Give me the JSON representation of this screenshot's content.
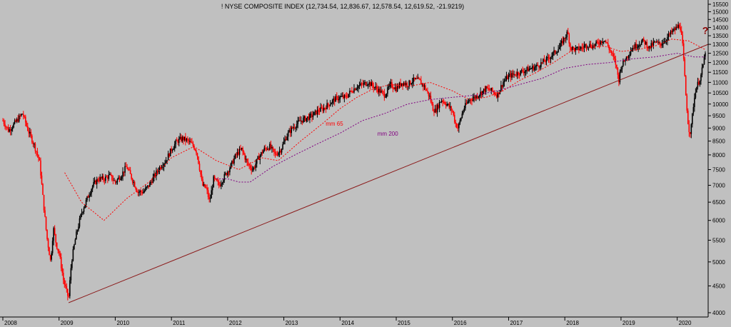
{
  "chart_data": {
    "type": "candlestick",
    "title": "! NYSE COMPOSITE INDEX (12,734.54, 12,836.67, 12,578.54, 12,619.52, -21.9219)",
    "xlabel": "",
    "ylabel": "",
    "x_range": [
      2008.0,
      2020.5
    ],
    "ylim": [
      4000,
      15500
    ],
    "y_scale": "log",
    "y_ticks": [
      4000,
      4500,
      5000,
      5500,
      6000,
      6500,
      7000,
      7500,
      8000,
      8500,
      9000,
      9500,
      10000,
      10500,
      11000,
      11500,
      12000,
      12500,
      13000,
      13500,
      14000,
      14500,
      15000,
      15500
    ],
    "x_ticks": [
      "2008",
      "2009",
      "2010",
      "2011",
      "2012",
      "2013",
      "2014",
      "2015",
      "2016",
      "2017",
      "2018",
      "2019",
      "2020"
    ],
    "grid": false,
    "price_path": [
      [
        2008.0,
        9300
      ],
      [
        2008.1,
        8900
      ],
      [
        2008.25,
        9300
      ],
      [
        2008.35,
        9600
      ],
      [
        2008.45,
        8900
      ],
      [
        2008.55,
        8400
      ],
      [
        2008.65,
        7800
      ],
      [
        2008.72,
        6500
      ],
      [
        2008.78,
        5600
      ],
      [
        2008.85,
        5000
      ],
      [
        2008.9,
        5800
      ],
      [
        2008.95,
        5400
      ],
      [
        2009.0,
        5200
      ],
      [
        2009.08,
        4600
      ],
      [
        2009.17,
        4250
      ],
      [
        2009.22,
        5000
      ],
      [
        2009.3,
        5600
      ],
      [
        2009.4,
        6200
      ],
      [
        2009.5,
        6600
      ],
      [
        2009.6,
        7000
      ],
      [
        2009.7,
        7200
      ],
      [
        2009.8,
        7200
      ],
      [
        2009.9,
        7300
      ],
      [
        2010.0,
        7100
      ],
      [
        2010.1,
        7300
      ],
      [
        2010.2,
        7600
      ],
      [
        2010.3,
        7200
      ],
      [
        2010.4,
        6800
      ],
      [
        2010.5,
        6800
      ],
      [
        2010.6,
        7000
      ],
      [
        2010.7,
        7300
      ],
      [
        2010.8,
        7600
      ],
      [
        2010.9,
        7800
      ],
      [
        2011.0,
        8200
      ],
      [
        2011.1,
        8500
      ],
      [
        2011.2,
        8600
      ],
      [
        2011.3,
        8500
      ],
      [
        2011.4,
        8300
      ],
      [
        2011.45,
        8100
      ],
      [
        2011.55,
        7000
      ],
      [
        2011.62,
        6900
      ],
      [
        2011.68,
        6500
      ],
      [
        2011.75,
        7200
      ],
      [
        2011.85,
        7000
      ],
      [
        2011.95,
        7300
      ],
      [
        2012.05,
        7600
      ],
      [
        2012.15,
        8000
      ],
      [
        2012.25,
        8200
      ],
      [
        2012.35,
        7700
      ],
      [
        2012.45,
        7500
      ],
      [
        2012.55,
        7900
      ],
      [
        2012.65,
        8200
      ],
      [
        2012.75,
        8300
      ],
      [
        2012.85,
        8000
      ],
      [
        2012.95,
        8200
      ],
      [
        2013.05,
        8700
      ],
      [
        2013.15,
        9000
      ],
      [
        2013.3,
        9300
      ],
      [
        2013.4,
        9400
      ],
      [
        2013.5,
        9500
      ],
      [
        2013.6,
        9700
      ],
      [
        2013.7,
        9800
      ],
      [
        2013.8,
        10000
      ],
      [
        2013.9,
        10200
      ],
      [
        2014.0,
        10300
      ],
      [
        2014.1,
        10300
      ],
      [
        2014.2,
        10600
      ],
      [
        2014.3,
        10800
      ],
      [
        2014.4,
        10900
      ],
      [
        2014.5,
        11000
      ],
      [
        2014.6,
        10800
      ],
      [
        2014.7,
        10600
      ],
      [
        2014.8,
        10400
      ],
      [
        2014.9,
        10900
      ],
      [
        2015.0,
        10700
      ],
      [
        2015.1,
        11000
      ],
      [
        2015.2,
        10900
      ],
      [
        2015.3,
        11100
      ],
      [
        2015.4,
        11100
      ],
      [
        2015.5,
        10800
      ],
      [
        2015.6,
        10300
      ],
      [
        2015.65,
        9800
      ],
      [
        2015.7,
        9700
      ],
      [
        2015.8,
        10200
      ],
      [
        2015.9,
        10000
      ],
      [
        2016.0,
        9700
      ],
      [
        2016.05,
        9200
      ],
      [
        2016.1,
        9000
      ],
      [
        2016.2,
        9800
      ],
      [
        2016.3,
        10200
      ],
      [
        2016.4,
        10300
      ],
      [
        2016.5,
        10500
      ],
      [
        2016.6,
        10700
      ],
      [
        2016.7,
        10600
      ],
      [
        2016.8,
        10400
      ],
      [
        2016.9,
        11000
      ],
      [
        2017.0,
        11300
      ],
      [
        2017.1,
        11400
      ],
      [
        2017.2,
        11500
      ],
      [
        2017.3,
        11600
      ],
      [
        2017.4,
        11700
      ],
      [
        2017.5,
        11800
      ],
      [
        2017.6,
        12000
      ],
      [
        2017.7,
        12200
      ],
      [
        2017.8,
        12500
      ],
      [
        2017.9,
        12800
      ],
      [
        2018.0,
        13400
      ],
      [
        2018.05,
        13700
      ],
      [
        2018.1,
        12800
      ],
      [
        2018.2,
        12700
      ],
      [
        2018.3,
        12800
      ],
      [
        2018.4,
        13000
      ],
      [
        2018.5,
        12900
      ],
      [
        2018.6,
        13100
      ],
      [
        2018.7,
        13300
      ],
      [
        2018.8,
        12700
      ],
      [
        2018.9,
        12000
      ],
      [
        2018.96,
        11100
      ],
      [
        2019.0,
        11800
      ],
      [
        2019.1,
        12300
      ],
      [
        2019.2,
        12800
      ],
      [
        2019.3,
        13000
      ],
      [
        2019.4,
        13200
      ],
      [
        2019.5,
        12800
      ],
      [
        2019.6,
        13100
      ],
      [
        2019.7,
        13000
      ],
      [
        2019.8,
        13300
      ],
      [
        2019.9,
        13700
      ],
      [
        2020.0,
        14000
      ],
      [
        2020.05,
        14200
      ],
      [
        2020.1,
        12800
      ],
      [
        2020.15,
        10500
      ],
      [
        2020.2,
        9000
      ],
      [
        2020.24,
        8800
      ],
      [
        2020.28,
        9800
      ],
      [
        2020.33,
        10700
      ],
      [
        2020.38,
        11000
      ],
      [
        2020.42,
        11300
      ],
      [
        2020.47,
        12000
      ],
      [
        2020.5,
        12619
      ]
    ],
    "series": [
      {
        "name": "mm 65",
        "color": "#ff0000",
        "style": "dashed",
        "x": [
          2009.1,
          2009.4,
          2009.8,
          2010.2,
          2010.6,
          2011.0,
          2011.4,
          2011.8,
          2012.2,
          2012.6,
          2012.9,
          2013.3,
          2013.7,
          2014.0,
          2014.3,
          2014.6,
          2014.9,
          2015.2,
          2015.6,
          2016.0,
          2016.3,
          2016.6,
          2016.9,
          2017.2,
          2017.5,
          2017.8,
          2018.1,
          2018.4,
          2018.7,
          2019.0,
          2019.3,
          2019.6,
          2019.9,
          2020.2,
          2020.5
        ],
        "values": [
          7400,
          6500,
          6000,
          6600,
          7100,
          7900,
          8300,
          7800,
          7500,
          7900,
          7800,
          8500,
          9200,
          9800,
          10300,
          10700,
          10900,
          10800,
          11000,
          10600,
          10200,
          10300,
          10600,
          11100,
          11500,
          12000,
          12600,
          12800,
          12900,
          12600,
          12700,
          12900,
          13300,
          13200,
          12700
        ]
      },
      {
        "name": "mm 200",
        "color": "#800080",
        "style": "dashed",
        "x": [
          2011.8,
          2012.0,
          2012.2,
          2012.4,
          2012.8,
          2013.2,
          2013.6,
          2014.0,
          2014.4,
          2014.8,
          2015.2,
          2015.6,
          2016.0,
          2016.4,
          2016.8,
          2017.2,
          2017.6,
          2018.0,
          2018.4,
          2018.8,
          2019.2,
          2019.6,
          2020.0,
          2020.3,
          2020.5
        ],
        "values": [
          7200,
          7200,
          7100,
          7100,
          7600,
          8000,
          8400,
          8800,
          9300,
          9600,
          10000,
          10200,
          10300,
          10400,
          10600,
          10900,
          11200,
          11700,
          11900,
          12000,
          12200,
          12300,
          12500,
          12300,
          12300
        ]
      },
      {
        "name": "trendline",
        "color": "#8b1a1a",
        "style": "solid",
        "x": [
          2009.17,
          2020.55
        ],
        "values": [
          4180,
          13000
        ]
      }
    ],
    "annotations": [
      {
        "text": "mm 65",
        "x": 2013.9,
        "y": 9100,
        "color": "#ff0000"
      },
      {
        "text": "mm 200",
        "x": 2014.85,
        "y": 8700,
        "color": "#800080"
      },
      {
        "text": "?",
        "x": 2020.5,
        "y": 13600,
        "color": "#8b0000"
      }
    ]
  }
}
